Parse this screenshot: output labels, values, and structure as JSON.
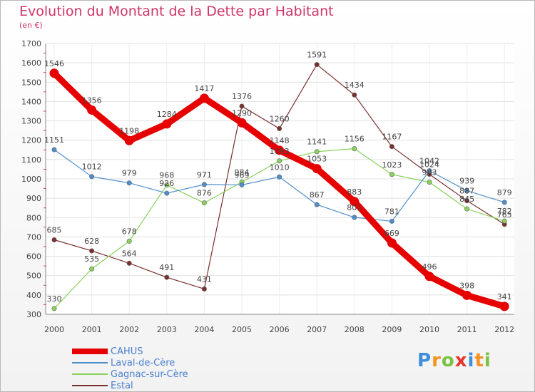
{
  "title": "Evolution du Montant de la Dette par Habitant",
  "subtitle": "(en €)",
  "logo": {
    "letters": [
      "P",
      "r",
      "o",
      "x",
      "i",
      "t",
      "i"
    ]
  },
  "chart_data": {
    "type": "line",
    "title": "Evolution du Montant de la Dette par Habitant",
    "subtitle": "(en €)",
    "x": [
      2000,
      2001,
      2002,
      2003,
      2004,
      2005,
      2006,
      2007,
      2008,
      2009,
      2010,
      2011,
      2012
    ],
    "ylim": [
      300,
      1700
    ],
    "yticks": [
      300,
      400,
      500,
      600,
      700,
      800,
      900,
      1000,
      1100,
      1200,
      1300,
      1400,
      1500,
      1600,
      1700
    ],
    "grid": true,
    "legend_position": "bottom-left",
    "series": [
      {
        "name": "CAHUS",
        "color": "#e60000",
        "values": [
          1546,
          1356,
          1198,
          1284,
          1417,
          1290,
          1148,
          1053,
          883,
          669,
          496,
          398,
          341
        ],
        "labels": [
          "1546",
          "1356",
          "1198",
          "1284",
          "1417",
          "1290",
          "1148",
          "1053",
          "883",
          "669",
          "496",
          "398",
          "341"
        ]
      },
      {
        "name": "Laval-de-Cère",
        "color": "#4f8ecc",
        "values": [
          1151,
          1012,
          979,
          926,
          971,
          969,
          1010,
          867,
          801,
          781,
          1042,
          939,
          879
        ],
        "labels": [
          "1151",
          "1012",
          "979",
          "926",
          "971",
          "969",
          "1010",
          "867",
          "801",
          "781",
          "1042",
          "939",
          "879"
        ]
      },
      {
        "name": "Gagnac-sur-Cère",
        "color": "#88d25a",
        "values": [
          330,
          535,
          678,
          968,
          876,
          984,
          1093,
          1141,
          1156,
          1023,
          983,
          845,
          782
        ],
        "labels": [
          "330",
          "535",
          "678",
          "968",
          "876",
          "984",
          "1093",
          "1141",
          "1156",
          "1023",
          "983",
          "845",
          "782"
        ]
      },
      {
        "name": "Estal",
        "color": "#7a2e2e",
        "values": [
          685,
          628,
          564,
          491,
          431,
          1376,
          1260,
          1591,
          1434,
          1167,
          1024,
          887,
          765
        ],
        "labels": [
          "685",
          "628",
          "564",
          "491",
          "431",
          "1376",
          "1260",
          "1591",
          "1434",
          "1167",
          "1024",
          "887",
          "765"
        ]
      }
    ]
  }
}
